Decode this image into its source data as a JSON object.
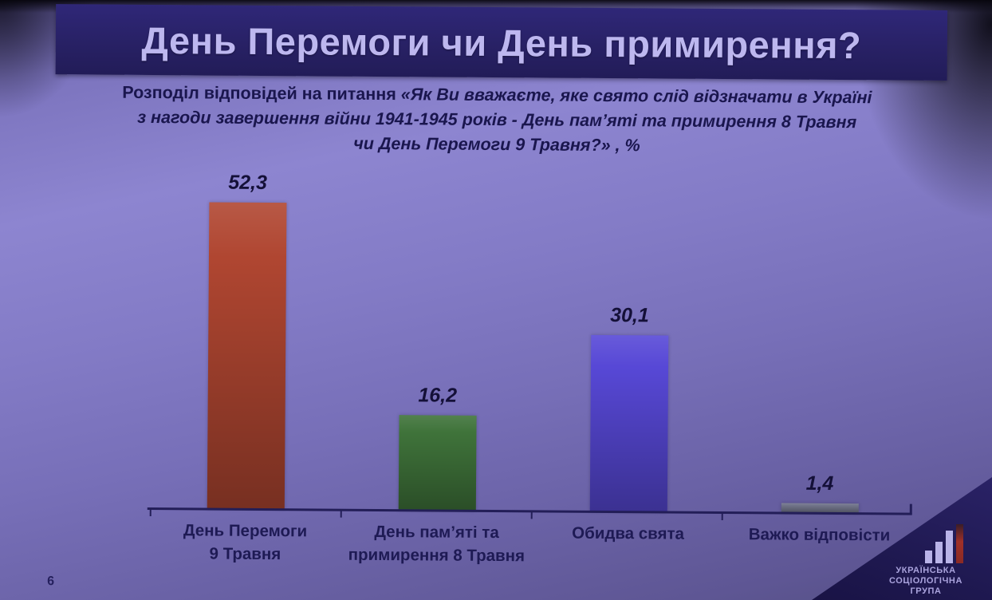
{
  "slide": {
    "page_number": "6",
    "title": "День Перемоги чи День примирення?",
    "subtitle": {
      "lead": "Розподіл відповідей на питання ",
      "quote_line1": "«Як Ви вважаєте, яке свято слід відзначати в Україні",
      "quote_line2": "з нагоди завершення війни 1941-1945 років - День пам’яті та примирення 8 Травня",
      "quote_line3": "чи День Перемоги 9 Травня?» , %"
    }
  },
  "chart_data": {
    "type": "bar",
    "title": "День Перемоги чи День примирення?",
    "question": "Як Ви вважаєте, яке свято слід відзначати в Україні з нагоди завершення війни 1941-1945 років - День пам’яті та примирення 8 Травня чи День Перемоги 9 Травня?",
    "unit": "%",
    "categories": [
      "День Перемоги 9 Травня",
      "День пам’яті та примирення 8 Травня",
      "Обидва свята",
      "Важко відповісти"
    ],
    "category_label_lines": [
      [
        "День Перемоги",
        "9 Травня"
      ],
      [
        "День пам’яті та",
        "примирення 8 Травня"
      ],
      [
        "Обидва свята"
      ],
      [
        "Важко відповісти"
      ]
    ],
    "values": [
      52.3,
      16.2,
      30.1,
      1.4
    ],
    "value_labels": [
      "52,3",
      "16,2",
      "30,1",
      "1,4"
    ],
    "bar_colors": [
      "#b04631",
      "#3f733a",
      "#5748d6",
      "#73768c"
    ],
    "ylim": [
      0,
      60
    ],
    "grid": false,
    "legend": false
  },
  "logo": {
    "icon": "bar-chart-logo-icon",
    "accent_color": "#8a2a25",
    "org_lines": [
      "УКРАЇНСЬКА",
      "СОЦІОЛОГІЧНА",
      "ГРУПА"
    ]
  }
}
